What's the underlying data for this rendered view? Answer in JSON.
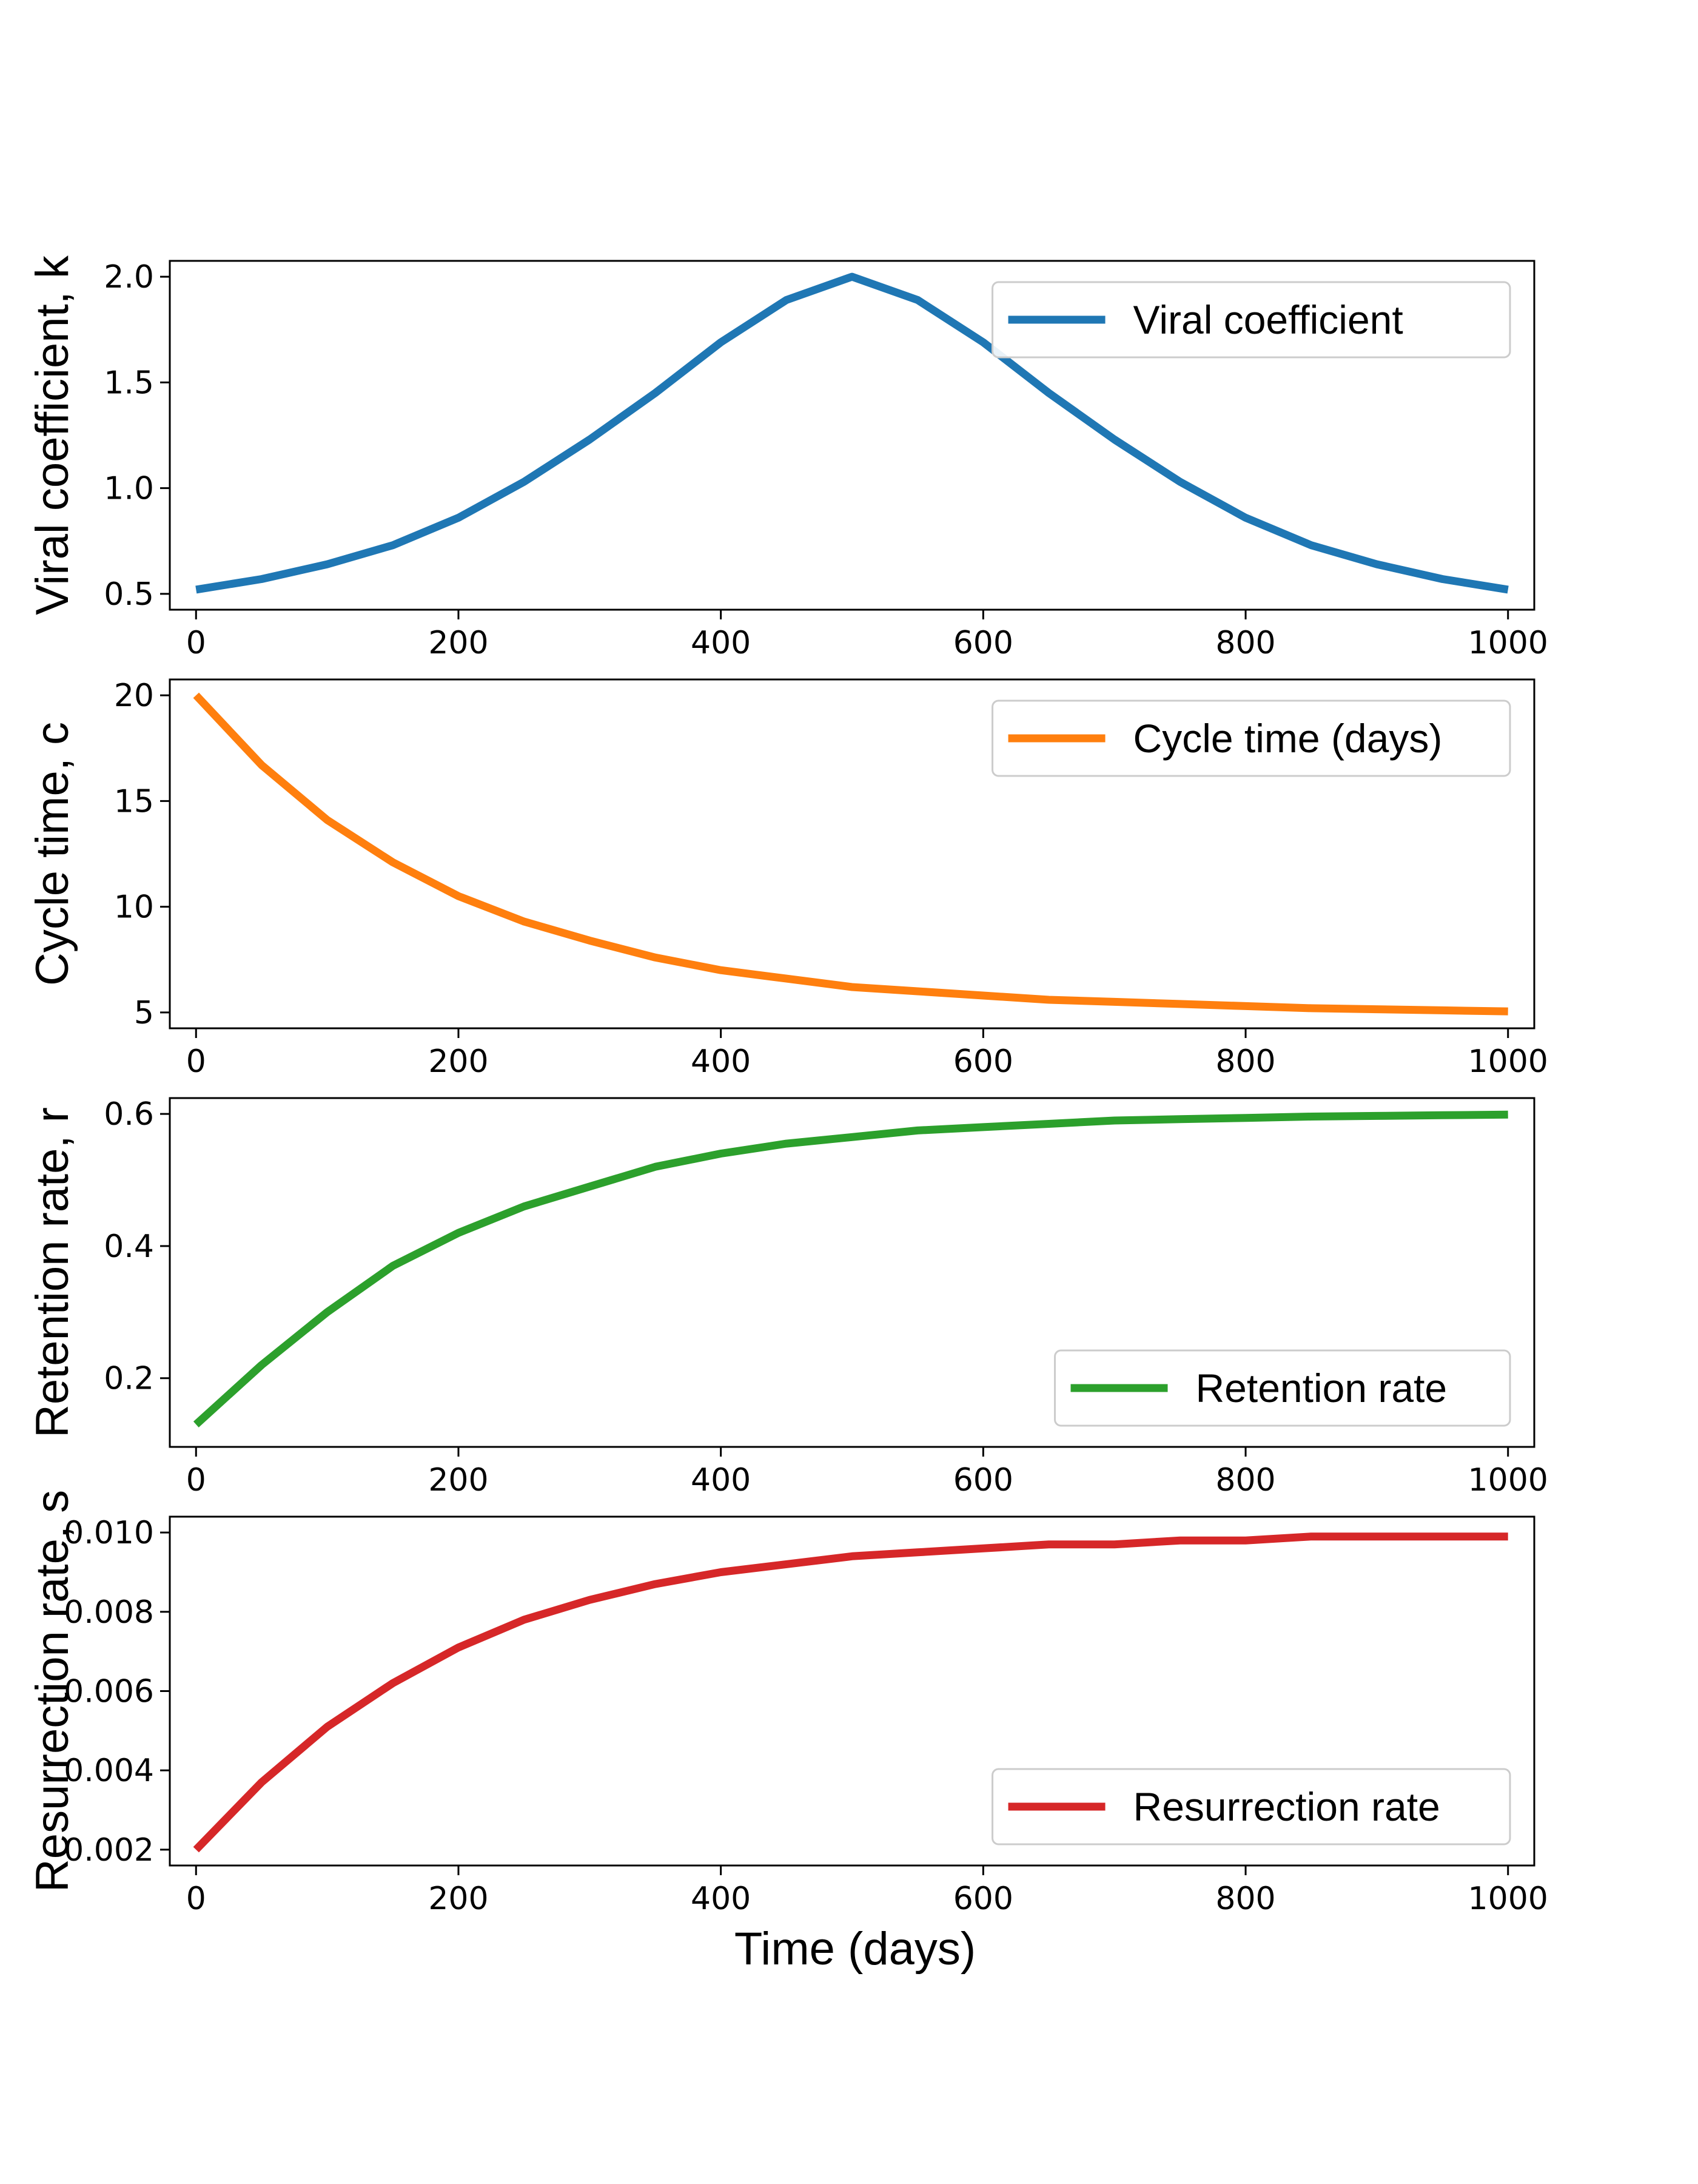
{
  "figure": {
    "xlabel": "Time (days)"
  },
  "chart_data": [
    {
      "type": "line",
      "ylabel": "Viral coefficient, k",
      "legend_position": "upper right",
      "xlim": [
        0,
        1000
      ],
      "ylim": [
        0.5,
        2.0
      ],
      "x_ticks": [
        "0",
        "200",
        "400",
        "600",
        "800",
        "1000"
      ],
      "y_ticks": [
        "0.5",
        "1.0",
        "1.5",
        "2.0"
      ],
      "series": [
        {
          "name": "Viral coefficient",
          "color": "#1f77b4",
          "x": [
            0,
            50,
            100,
            150,
            200,
            250,
            300,
            350,
            400,
            450,
            500,
            550,
            600,
            650,
            700,
            750,
            800,
            850,
            900,
            950,
            1000
          ],
          "y": [
            0.52,
            0.57,
            0.64,
            0.73,
            0.86,
            1.03,
            1.23,
            1.45,
            1.69,
            1.89,
            2.0,
            1.89,
            1.69,
            1.45,
            1.23,
            1.03,
            0.86,
            0.73,
            0.64,
            0.57,
            0.52
          ]
        }
      ]
    },
    {
      "type": "line",
      "ylabel": "Cycle time, c",
      "legend_position": "upper right",
      "xlim": [
        0,
        1000
      ],
      "ylim": [
        5,
        20
      ],
      "x_ticks": [
        "0",
        "200",
        "400",
        "600",
        "800",
        "1000"
      ],
      "y_ticks": [
        "5",
        "10",
        "15",
        "20"
      ],
      "series": [
        {
          "name": "Cycle time (days)",
          "color": "#ff7f0e",
          "x": [
            0,
            50,
            100,
            150,
            200,
            250,
            300,
            350,
            400,
            450,
            500,
            550,
            600,
            650,
            700,
            750,
            800,
            850,
            900,
            950,
            1000
          ],
          "y": [
            20.0,
            16.7,
            14.1,
            12.1,
            10.5,
            9.3,
            8.4,
            7.6,
            7.0,
            6.6,
            6.2,
            6.0,
            5.8,
            5.6,
            5.5,
            5.4,
            5.3,
            5.2,
            5.15,
            5.1,
            5.05
          ]
        }
      ]
    },
    {
      "type": "line",
      "ylabel": "Retention rate, r",
      "legend_position": "lower right",
      "xlim": [
        0,
        1000
      ],
      "ylim": [
        0.12,
        0.6
      ],
      "x_ticks": [
        "0",
        "200",
        "400",
        "600",
        "800",
        "1000"
      ],
      "y_ticks": [
        "0.2",
        "0.4",
        "0.6"
      ],
      "series": [
        {
          "name": "Retention rate",
          "color": "#2ca02c",
          "x": [
            0,
            50,
            100,
            150,
            200,
            250,
            300,
            350,
            400,
            450,
            500,
            550,
            600,
            650,
            700,
            750,
            800,
            850,
            900,
            950,
            1000
          ],
          "y": [
            0.13,
            0.22,
            0.3,
            0.37,
            0.42,
            0.46,
            0.49,
            0.52,
            0.54,
            0.555,
            0.565,
            0.575,
            0.58,
            0.585,
            0.59,
            0.592,
            0.594,
            0.596,
            0.597,
            0.598,
            0.599
          ]
        }
      ]
    },
    {
      "type": "line",
      "ylabel": "Resurrection rate, s",
      "legend_position": "lower right",
      "xlim": [
        0,
        1000
      ],
      "ylim": [
        0.002,
        0.01
      ],
      "x_ticks": [
        "0",
        "200",
        "400",
        "600",
        "800",
        "1000"
      ],
      "y_ticks": [
        "0.002",
        "0.004",
        "0.006",
        "0.008",
        "0.010"
      ],
      "series": [
        {
          "name": "Resurrection rate",
          "color": "#d62728",
          "x": [
            0,
            50,
            100,
            150,
            200,
            250,
            300,
            350,
            400,
            450,
            500,
            550,
            600,
            650,
            700,
            750,
            800,
            850,
            900,
            950,
            1000
          ],
          "y": [
            0.002,
            0.0037,
            0.0051,
            0.0062,
            0.0071,
            0.0078,
            0.0083,
            0.0087,
            0.009,
            0.0092,
            0.0094,
            0.0095,
            0.0096,
            0.0097,
            0.0097,
            0.0098,
            0.0098,
            0.0099,
            0.0099,
            0.0099,
            0.0099
          ]
        }
      ]
    }
  ]
}
